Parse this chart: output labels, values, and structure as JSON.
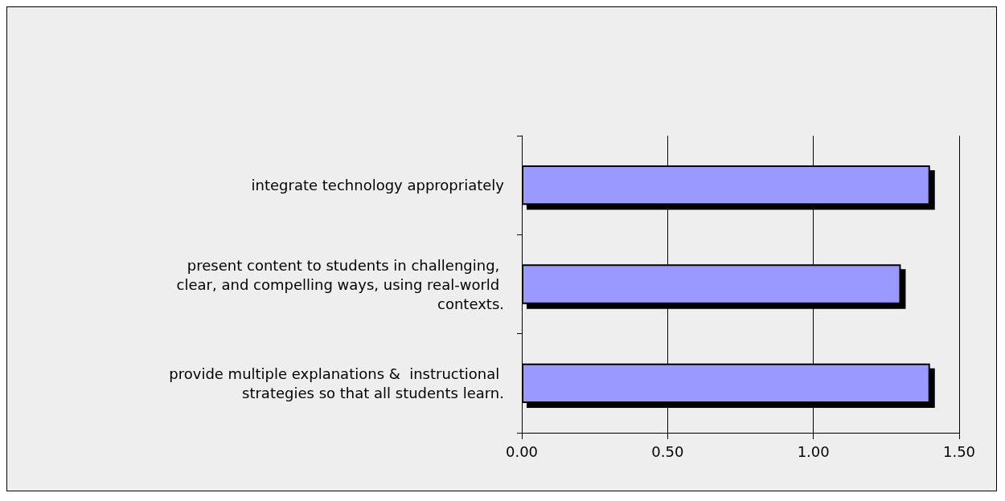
{
  "chart_data": {
    "type": "bar",
    "orientation": "horizontal",
    "categories": [
      "integrate technology appropriately",
      "present content to students in challenging, clear, and compelling ways, using real-world contexts.",
      "provide multiple explanations &  instructional strategies so that all students learn."
    ],
    "values": [
      1.4,
      1.3,
      1.4
    ],
    "color": "#9999ff",
    "xlim": [
      0,
      1.5
    ],
    "xticks": [
      {
        "value": 0,
        "label": "0.00"
      },
      {
        "value": 0.5,
        "label": "0.50"
      },
      {
        "value": 1,
        "label": "1.00"
      },
      {
        "value": 1.5,
        "label": "1.50"
      }
    ],
    "grid": "x"
  }
}
